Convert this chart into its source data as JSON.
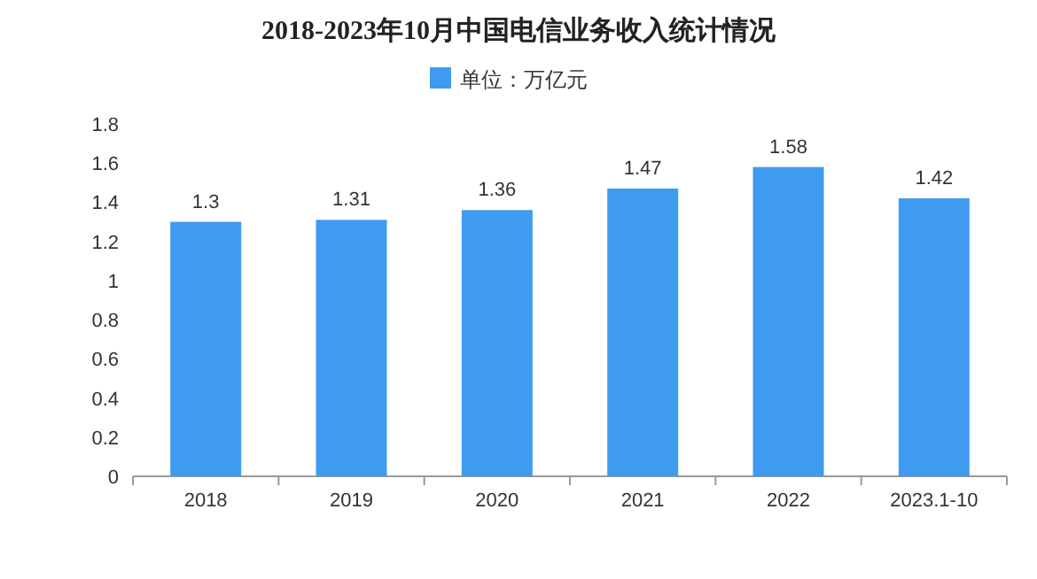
{
  "chart_data": {
    "type": "bar",
    "title": "2018-2023年10月中国电信业务收入统计情况",
    "categories": [
      "2018",
      "2019",
      "2020",
      "2021",
      "2022",
      "2023.1-10"
    ],
    "series": [
      {
        "name": "单位：万亿元",
        "color": "#3e9bf0",
        "values": [
          1.3,
          1.31,
          1.36,
          1.47,
          1.58,
          1.42
        ]
      }
    ],
    "ylim": [
      0,
      1.8
    ],
    "yticks": [
      0,
      0.2,
      0.4,
      0.6,
      0.8,
      1,
      1.2,
      1.4,
      1.6,
      1.8
    ],
    "data_labels": true,
    "grid": false,
    "legend": "top"
  }
}
